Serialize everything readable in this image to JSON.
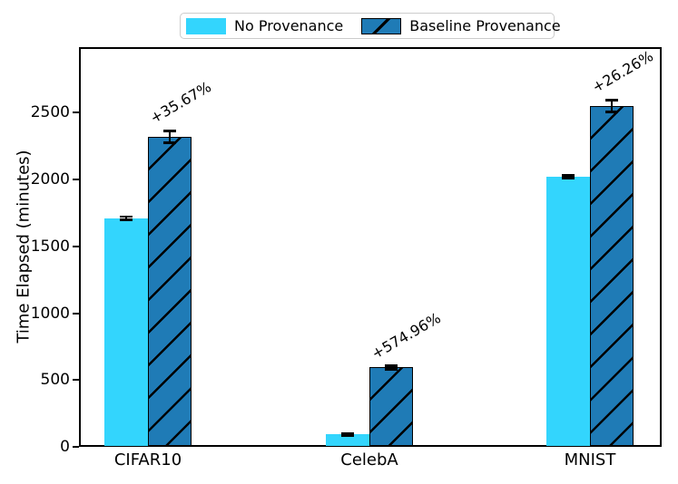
{
  "figure": {
    "background": "#ffffff"
  },
  "legend": {
    "items": [
      {
        "label": "No Provenance",
        "color": "#33d5fd",
        "hatch": false
      },
      {
        "label": "Baseline Provenance",
        "color": "#1f7bb6",
        "hatch": true
      }
    ]
  },
  "chart_data": {
    "type": "bar",
    "title": "",
    "xlabel": "",
    "ylabel": "Time Elapsed (minutes)",
    "categories": [
      "CIFAR10",
      "CelebA",
      "MNIST"
    ],
    "series": [
      {
        "name": "No Provenance",
        "color": "#33d5fd",
        "hatch": false,
        "values": [
          1704,
          87,
          2013
        ],
        "errors": [
          12,
          8,
          12
        ]
      },
      {
        "name": "Baseline Provenance",
        "color": "#1f7bb6",
        "hatch": true,
        "values": [
          2312,
          587,
          2542
        ],
        "errors": [
          45,
          12,
          45
        ]
      }
    ],
    "annotations": [
      {
        "category": "CIFAR10",
        "label": "+35.67%"
      },
      {
        "category": "CelebA",
        "label": "+574.96%"
      },
      {
        "category": "MNIST",
        "label": "+26.26%"
      }
    ],
    "yticks": [
      0,
      500,
      1000,
      1500,
      2000,
      2500
    ],
    "ylim": [
      0,
      2990
    ],
    "grid": false,
    "legend_position": "upper center outside",
    "hatch_color": "#000000",
    "annotation_rotation_deg": -30
  }
}
